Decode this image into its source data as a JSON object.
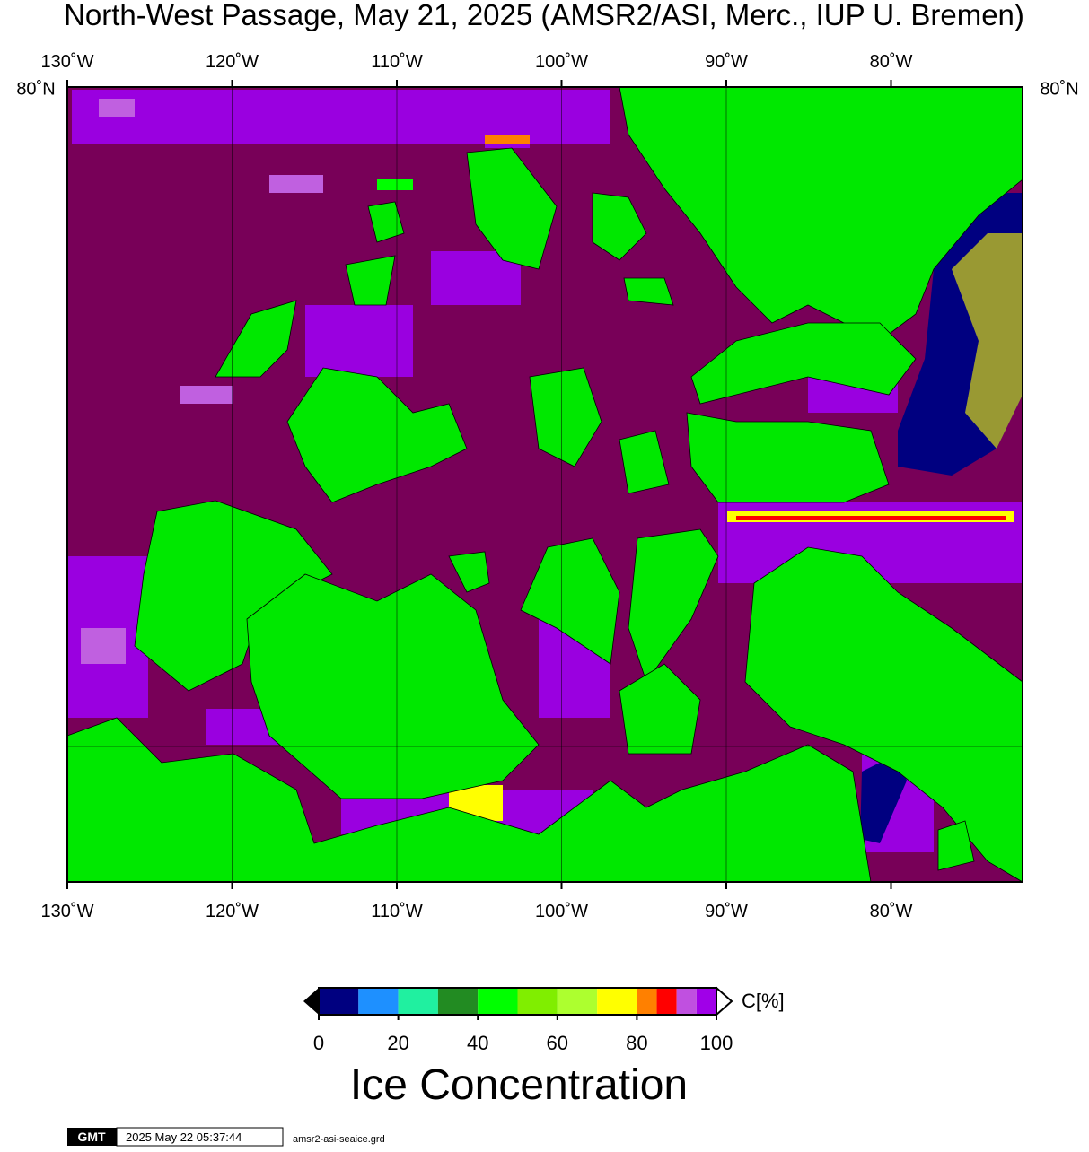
{
  "title": "North-West Passage, May 21, 2025 (AMSR2/ASI, Merc., IUP U. Bremen)",
  "map": {
    "lon_ticks": [
      {
        "value": -130,
        "label": "130˚W"
      },
      {
        "value": -120,
        "label": "120˚W"
      },
      {
        "value": -110,
        "label": "110˚W"
      },
      {
        "value": -100,
        "label": "100˚W"
      },
      {
        "value": -90,
        "label": "90˚W"
      },
      {
        "value": -80,
        "label": "80˚W"
      }
    ],
    "lat_label": "80˚N"
  },
  "colorbar": {
    "bounds": [
      0,
      10,
      20,
      30,
      40,
      50,
      60,
      70,
      80,
      85,
      90,
      95,
      100
    ],
    "colors": [
      "#000080",
      "#1e90ff",
      "#20f0a0",
      "#228b22",
      "#00ff00",
      "#80ee00",
      "#adff2f",
      "#ffff00",
      "#ff8000",
      "#ff0000",
      "#c050e0",
      "#a000e8"
    ],
    "ticks": [
      0,
      20,
      40,
      60,
      80,
      100
    ],
    "unit": "C[%]",
    "title": "Ice Concentration"
  },
  "footer": {
    "logo": "GMT",
    "timestamp": "2025 May 22 05:37:44",
    "file": "amsr2-asi-seaice.grd"
  }
}
